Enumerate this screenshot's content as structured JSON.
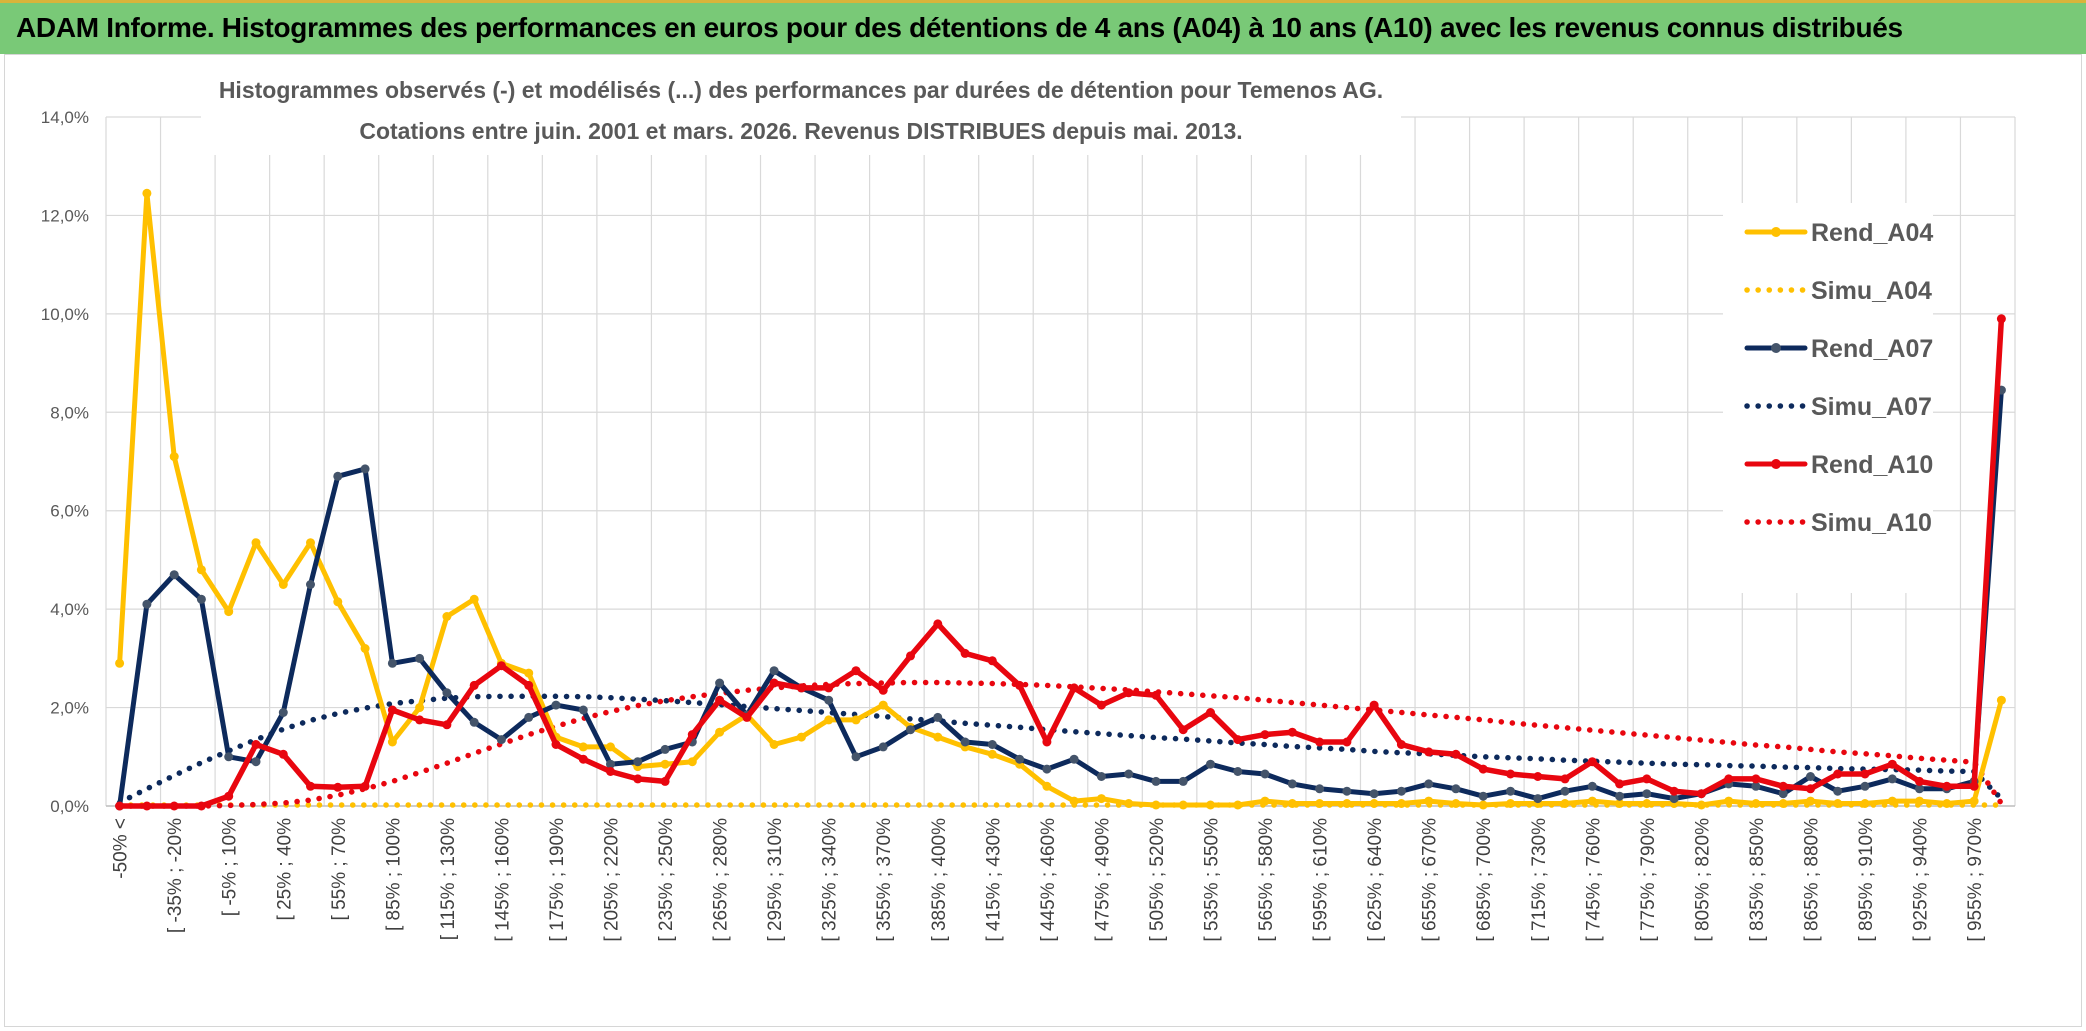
{
  "banner": {
    "title": "ADAM Informe. Histogrammes des performances en euros pour des détentions de 4 ans (A04) à 10 ans (A10) avec les revenus connus distribués"
  },
  "colors": {
    "banner": "#79c977",
    "A04": "#ffc000",
    "A07": "#0d2a5c",
    "A10": "#e8060f",
    "grid": "#d9d9d9"
  },
  "chart_data": {
    "type": "line",
    "title": "Histogrammes observés (-) et modélisés (...) des performances par durées de détention pour Temenos AG.",
    "subtitle": "Cotations entre juin. 2001 et mars. 2026. Revenus DISTRIBUES depuis mai. 2013.",
    "y_ticks": [
      "0,0%",
      "2,0%",
      "4,0%",
      "6,0%",
      "8,0%",
      "10,0%",
      "12,0%",
      "14,0%"
    ],
    "ylim": [
      0,
      14
    ],
    "grid": true,
    "legend_position": "right",
    "x_tick_labels": [
      "-50% <",
      "[ -35% ; -20%",
      "[ -5% ; 10%",
      "[ 25% ; 40%",
      "[ 55% ; 70%",
      "[ 85% ; 100%",
      "[ 115% ; 130%",
      "[ 145% ; 160%",
      "[ 175% ; 190%",
      "[ 205% ; 220%",
      "[ 235% ; 250%",
      "[ 265% ; 280%",
      "[ 295% ; 310%",
      "[ 325% ; 340%",
      "[ 355% ; 370%",
      "[ 385% ; 400%",
      "[ 415% ; 430%",
      "[ 445% ; 460%",
      "[ 475% ; 490%",
      "[ 505% ; 520%",
      "[ 535% ; 550%",
      "[ 565% ; 580%",
      "[ 595% ; 610%",
      "[ 625% ; 640%",
      "[ 655% ; 670%",
      "[ 685% ; 700%",
      "[ 715% ; 730%",
      "[ 745% ; 760%",
      "[ 775% ; 790%",
      "[ 805% ; 820%",
      "[ 835% ; 850%",
      "[ 865% ; 880%",
      "[ 895% ; 910%",
      "[ 925% ; 940%",
      "[ 955% ; 970%"
    ],
    "n_categories": 70,
    "series": [
      {
        "name": "Rend_A04",
        "style": "solid",
        "color": "#ffc000",
        "markers": true,
        "values": [
          2.9,
          12.45,
          7.1,
          4.8,
          3.95,
          5.35,
          4.5,
          5.35,
          4.15,
          3.2,
          1.3,
          2.0,
          3.85,
          4.2,
          2.9,
          2.7,
          1.4,
          1.2,
          1.2,
          0.8,
          0.85,
          0.9,
          1.5,
          1.85,
          1.25,
          1.4,
          1.75,
          1.75,
          2.05,
          1.6,
          1.4,
          1.2,
          1.05,
          0.85,
          0.4,
          0.1,
          0.15,
          0.05,
          0.02,
          0.02,
          0.02,
          0.02,
          0.1,
          0.05,
          0.05,
          0.05,
          0.05,
          0.05,
          0.1,
          0.05,
          0.02,
          0.05,
          0.05,
          0.05,
          0.1,
          0.05,
          0.05,
          0.05,
          0.02,
          0.1,
          0.05,
          0.05,
          0.1,
          0.05,
          0.05,
          0.1,
          0.1,
          0.05,
          0.1,
          2.15
        ]
      },
      {
        "name": "Simu_A04",
        "style": "dotted",
        "color": "#ffc000",
        "markers": false,
        "values": [
          0.02,
          0.02,
          0.02,
          0.02,
          0.02,
          0.02,
          0.02,
          0.02,
          0.02,
          0.02,
          0.02,
          0.02,
          0.02,
          0.02,
          0.02,
          0.02,
          0.02,
          0.02,
          0.02,
          0.02,
          0.02,
          0.02,
          0.02,
          0.02,
          0.02,
          0.02,
          0.02,
          0.02,
          0.02,
          0.02,
          0.02,
          0.02,
          0.02,
          0.02,
          0.02,
          0.02,
          0.02,
          0.02,
          0.02,
          0.02,
          0.02,
          0.02,
          0.02,
          0.02,
          0.02,
          0.02,
          0.02,
          0.02,
          0.02,
          0.02,
          0.02,
          0.02,
          0.02,
          0.02,
          0.02,
          0.02,
          0.02,
          0.02,
          0.02,
          0.02,
          0.02,
          0.02,
          0.02,
          0.02,
          0.02,
          0.02,
          0.02,
          0.02,
          0.02,
          0.02
        ]
      },
      {
        "name": "Rend_A07",
        "style": "solid",
        "color": "#0d2a5c",
        "markers": true,
        "values": [
          0.0,
          4.1,
          4.7,
          4.2,
          1.0,
          0.9,
          1.9,
          4.5,
          6.7,
          6.85,
          2.9,
          3.0,
          2.3,
          1.7,
          1.35,
          1.8,
          2.05,
          1.95,
          0.85,
          0.9,
          1.15,
          1.3,
          2.5,
          1.85,
          2.75,
          2.4,
          2.15,
          1.0,
          1.2,
          1.55,
          1.8,
          1.3,
          1.25,
          0.95,
          0.75,
          0.95,
          0.6,
          0.65,
          0.5,
          0.5,
          0.85,
          0.7,
          0.65,
          0.45,
          0.35,
          0.3,
          0.25,
          0.3,
          0.45,
          0.35,
          0.2,
          0.3,
          0.15,
          0.3,
          0.4,
          0.2,
          0.25,
          0.15,
          0.25,
          0.45,
          0.4,
          0.25,
          0.6,
          0.3,
          0.4,
          0.55,
          0.35,
          0.35,
          0.5,
          8.45
        ]
      },
      {
        "name": "Simu_A07",
        "style": "dotted",
        "color": "#0d2a5c",
        "markers": false,
        "values": [
          0.07,
          0.35,
          0.62,
          0.88,
          1.12,
          1.35,
          1.56,
          1.74,
          1.88,
          1.99,
          2.08,
          2.14,
          2.19,
          2.22,
          2.23,
          2.23,
          2.23,
          2.22,
          2.2,
          2.17,
          2.14,
          2.1,
          2.06,
          2.02,
          1.98,
          1.94,
          1.9,
          1.86,
          1.82,
          1.77,
          1.73,
          1.68,
          1.64,
          1.6,
          1.55,
          1.51,
          1.47,
          1.43,
          1.39,
          1.36,
          1.32,
          1.28,
          1.25,
          1.21,
          1.18,
          1.15,
          1.11,
          1.08,
          1.06,
          1.03,
          1.0,
          0.98,
          0.96,
          0.93,
          0.91,
          0.89,
          0.87,
          0.85,
          0.84,
          0.82,
          0.81,
          0.79,
          0.78,
          0.76,
          0.75,
          0.74,
          0.73,
          0.71,
          0.7,
          0.15
        ]
      },
      {
        "name": "Rend_A10",
        "style": "solid",
        "color": "#e8060f",
        "markers": true,
        "values": [
          0.0,
          0.0,
          0.0,
          0.0,
          0.2,
          1.25,
          1.05,
          0.4,
          0.38,
          0.4,
          1.95,
          1.75,
          1.65,
          2.45,
          2.85,
          2.45,
          1.25,
          0.95,
          0.7,
          0.55,
          0.5,
          1.45,
          2.15,
          1.8,
          2.5,
          2.4,
          2.4,
          2.75,
          2.35,
          3.05,
          3.7,
          3.1,
          2.95,
          2.45,
          1.3,
          2.4,
          2.05,
          2.3,
          2.25,
          1.55,
          1.9,
          1.35,
          1.45,
          1.5,
          1.3,
          1.3,
          2.05,
          1.25,
          1.1,
          1.05,
          0.75,
          0.65,
          0.6,
          0.55,
          0.9,
          0.45,
          0.55,
          0.3,
          0.25,
          0.55,
          0.55,
          0.4,
          0.35,
          0.65,
          0.65,
          0.85,
          0.5,
          0.4,
          0.4,
          9.9
        ]
      },
      {
        "name": "Simu_A10",
        "style": "dotted",
        "color": "#e8060f",
        "markers": false,
        "values": [
          0.0,
          0.0,
          0.0,
          0.0,
          0.01,
          0.03,
          0.06,
          0.12,
          0.22,
          0.35,
          0.5,
          0.68,
          0.87,
          1.07,
          1.26,
          1.45,
          1.62,
          1.78,
          1.92,
          2.04,
          2.14,
          2.22,
          2.29,
          2.35,
          2.4,
          2.44,
          2.47,
          2.49,
          2.5,
          2.51,
          2.51,
          2.5,
          2.49,
          2.47,
          2.45,
          2.42,
          2.39,
          2.36,
          2.32,
          2.28,
          2.24,
          2.2,
          2.15,
          2.1,
          2.05,
          2.0,
          1.95,
          1.9,
          1.85,
          1.8,
          1.75,
          1.69,
          1.64,
          1.59,
          1.54,
          1.49,
          1.44,
          1.39,
          1.34,
          1.29,
          1.24,
          1.2,
          1.15,
          1.1,
          1.06,
          1.02,
          0.97,
          0.93,
          0.89,
          0.05
        ]
      }
    ]
  }
}
